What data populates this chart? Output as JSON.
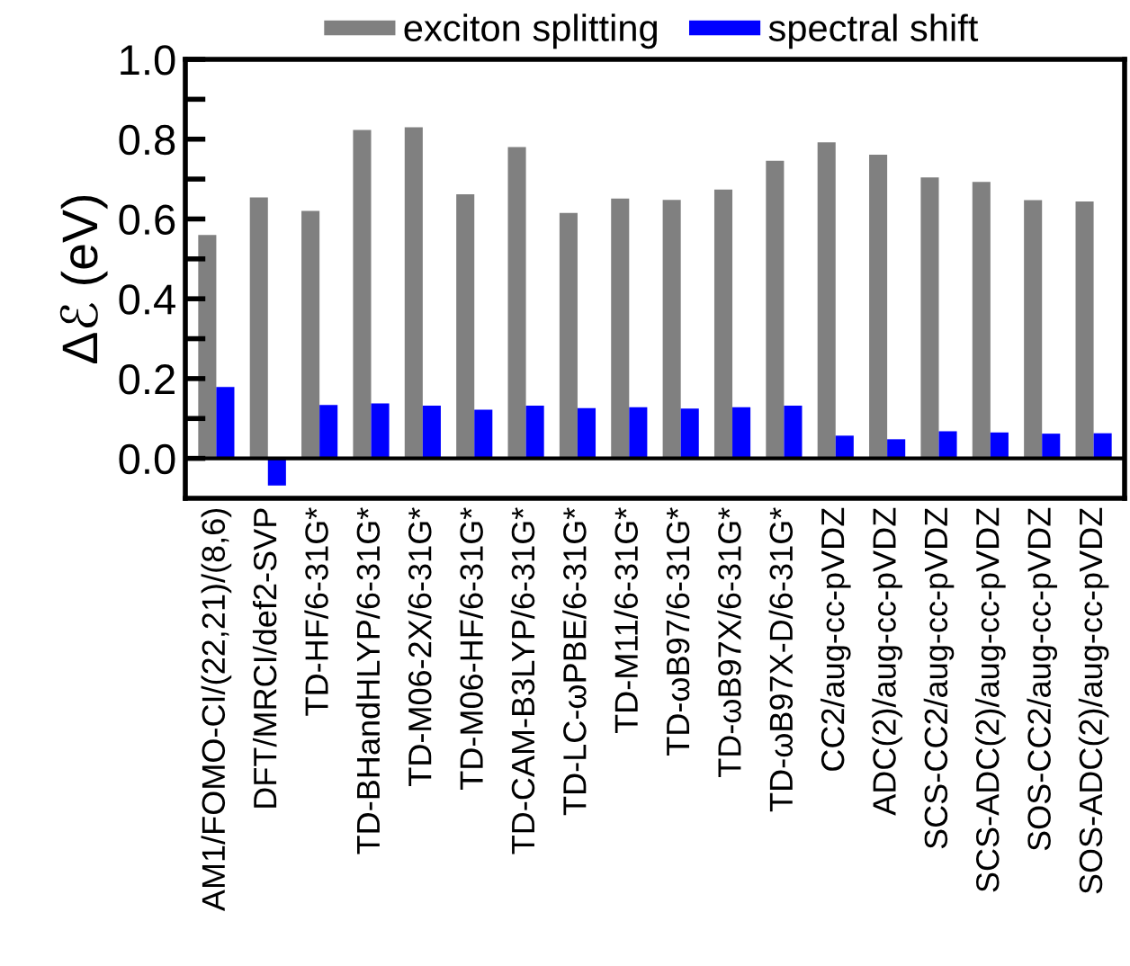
{
  "chart_data": {
    "type": "bar",
    "ylabel": "Δℰ (eV)",
    "categories": [
      "AM1/FOMO-CI/(22,21)/(8,6)",
      "DFT/MRCI/def2-SVP",
      "TD-HF/6-31G*",
      "TD-BHandHLYP/6-31G*",
      "TD-M06-2X/6-31G*",
      "TD-M06-HF/6-31G*",
      "TD-CAM-B3LYP/6-31G*",
      "TD-LC-ωPBE/6-31G*",
      "TD-M11/6-31G*",
      "TD-ωB97/6-31G*",
      "TD-ωB97X/6-31G*",
      "TD-ωB97X-D/6-31G*",
      "CC2/aug-cc-pVDZ",
      "ADC(2)/aug-cc-pVDZ",
      "SCS-CC2/aug-cc-pVDZ",
      "SCS-ADC(2)/aug-cc-pVDZ",
      "SOS-CC2/aug-cc-pVDZ",
      "SOS-ADC(2)/aug-cc-pVDZ"
    ],
    "series": [
      {
        "name": "exciton splitting",
        "color": "#808080",
        "values": [
          0.56,
          0.654,
          0.62,
          0.823,
          0.83,
          0.662,
          0.78,
          0.615,
          0.651,
          0.648,
          0.674,
          0.746,
          0.792,
          0.761,
          0.704,
          0.693,
          0.647,
          0.644
        ]
      },
      {
        "name": "spectral shift",
        "color": "#0000ff",
        "values": [
          0.179,
          -0.068,
          0.134,
          0.138,
          0.132,
          0.122,
          0.132,
          0.126,
          0.128,
          0.125,
          0.128,
          0.132,
          0.057,
          0.048,
          0.068,
          0.065,
          0.062,
          0.063
        ]
      }
    ],
    "ylim": [
      -0.1,
      1.0
    ],
    "yticks": [
      {
        "value": 0,
        "label": "0.0"
      },
      {
        "value": 0.1,
        "label": null
      },
      0.2,
      {
        "value": 0.3,
        "label": null
      },
      0.4,
      {
        "value": 0.5,
        "label": null
      },
      0.6,
      {
        "value": 0.7,
        "label": null
      },
      0.8,
      {
        "value": 0.9,
        "label": null
      },
      {
        "value": 1,
        "label": "1.0"
      }
    ],
    "ref_lines": [
      {
        "axis": "y",
        "value": 0.0,
        "color": "#000000"
      }
    ],
    "grid": false,
    "legend": "top"
  }
}
